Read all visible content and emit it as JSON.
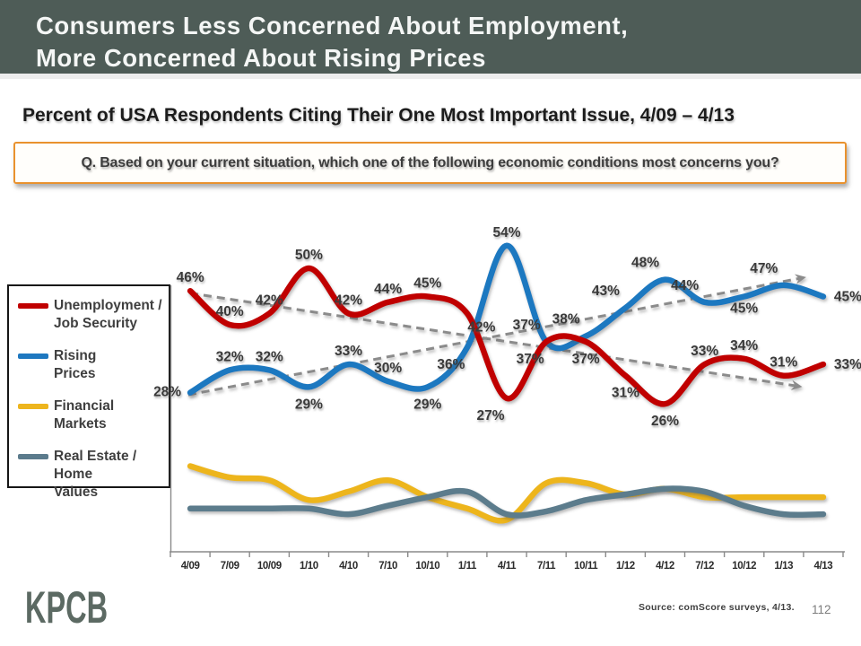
{
  "header": {
    "title_line1": "Consumers Less Concerned About Employment,",
    "title_line2": "More Concerned About Rising Prices"
  },
  "subtitle": "Percent of USA Respondents Citing Their One Most Important Issue, 4/09 – 4/13",
  "question": "Q. Based on your current situation, which one of the following economic conditions most concerns you?",
  "legend": {
    "items": [
      {
        "line1": "Unemployment /",
        "line2": "Job Security",
        "color": "#c00000"
      },
      {
        "line1": "Rising",
        "line2": "Prices",
        "color": "#1e78c0"
      },
      {
        "line1": "Financial",
        "line2": "Markets",
        "color": "#edb51e"
      },
      {
        "line1": "Real Estate / Home",
        "line2": "Values",
        "color": "#5b7b8c"
      }
    ]
  },
  "chart_data": {
    "type": "line",
    "title": "Percent of USA Respondents Citing Their One Most Important Issue, 4/09 - 4/13",
    "categories": [
      "4/09",
      "7/09",
      "10/09",
      "1/10",
      "4/10",
      "7/10",
      "10/10",
      "1/11",
      "4/11",
      "7/11",
      "10/11",
      "1/12",
      "4/12",
      "7/12",
      "10/12",
      "1/13",
      "4/13"
    ],
    "value_suffix": "%",
    "ylim": [
      0,
      60
    ],
    "grid": false,
    "legend_position": "left",
    "series": [
      {
        "name": "Unemployment / Job Security",
        "color": "#c00000",
        "values": [
          46,
          40,
          42,
          50,
          42,
          44,
          45,
          42,
          27,
          37,
          37,
          31,
          26,
          33,
          34,
          31,
          33
        ],
        "show_labels": true,
        "label_pos": [
          "a",
          "a",
          "a",
          "a",
          "a",
          "a",
          "a",
          "br",
          "bl",
          "bl",
          "b",
          "b",
          "b",
          "a",
          "a",
          "a",
          "r"
        ]
      },
      {
        "name": "Rising Prices",
        "color": "#1e78c0",
        "values": [
          28,
          32,
          32,
          29,
          33,
          30,
          29,
          36,
          54,
          37,
          38,
          43,
          48,
          44,
          45,
          47,
          45
        ],
        "show_labels": true,
        "label_pos": [
          "l",
          "a",
          "a",
          "b",
          "a",
          "a",
          "b",
          "bl",
          "a",
          "al",
          "al",
          "al",
          "al",
          "al",
          "bs",
          "al",
          "r"
        ]
      },
      {
        "name": "Financial Markets",
        "color": "#edb51e",
        "values": [
          15,
          13,
          12.5,
          9,
          10.5,
          12.5,
          9.5,
          7.5,
          5.5,
          12,
          12,
          10,
          11,
          9.5,
          9.5,
          9.5,
          9.5
        ],
        "show_labels": false,
        "label_pos": []
      },
      {
        "name": "Real Estate / Home Values",
        "color": "#5b7b8c",
        "values": [
          7.5,
          7.5,
          7.5,
          7.5,
          6.5,
          8,
          9.5,
          10.5,
          6.5,
          7,
          9,
          10,
          11,
          10.5,
          8,
          6.5,
          6.5
        ],
        "show_labels": false,
        "label_pos": []
      }
    ],
    "trend_arrows": [
      {
        "name": "unemployment-downtrend",
        "direction": "down",
        "from": {
          "i": 0,
          "v": 45.6
        },
        "to": {
          "i": 15.3,
          "v": 29.2
        }
      },
      {
        "name": "rising-prices-uptrend",
        "direction": "up",
        "from": {
          "i": -0.05,
          "v": 27.6
        },
        "to": {
          "i": 15.4,
          "v": 48.2
        }
      }
    ]
  },
  "footer": {
    "logo": "KPCB",
    "source": "Source: comScore surveys, 4/13.",
    "page_number": "112"
  },
  "colors": {
    "header_bg": "#4e5c57",
    "question_border": "#e9922e",
    "trend_dash": "#8b8b8b",
    "logo": "#5c6a63",
    "data_label": "#3a3a3a"
  }
}
